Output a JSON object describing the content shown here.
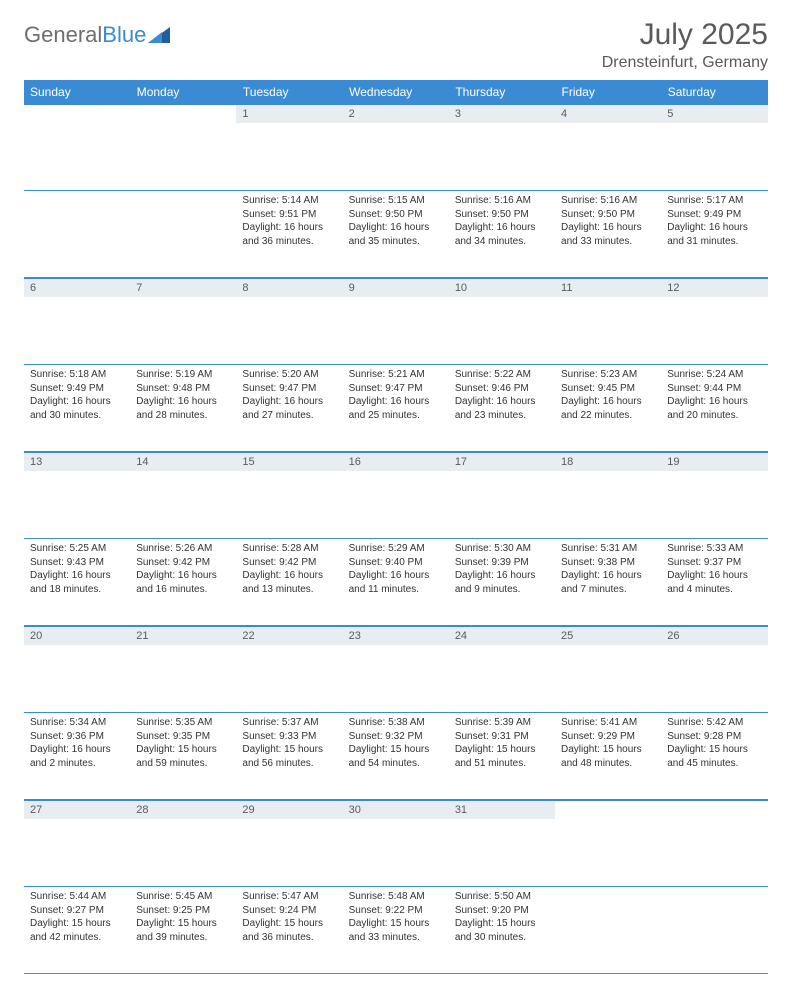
{
  "brand": {
    "part1": "General",
    "part2": "Blue"
  },
  "title": "July 2025",
  "location": "Drensteinfurt, Germany",
  "colors": {
    "header_bg": "#3b8bd4",
    "header_text": "#ffffff",
    "daynum_bg": "#e8edf1",
    "text": "#333333",
    "title_text": "#5a5a5a"
  },
  "columns": [
    "Sunday",
    "Monday",
    "Tuesday",
    "Wednesday",
    "Thursday",
    "Friday",
    "Saturday"
  ],
  "weeks": [
    [
      null,
      null,
      {
        "n": "1",
        "sr": "5:14 AM",
        "ss": "9:51 PM",
        "dl": "16 hours and 36 minutes."
      },
      {
        "n": "2",
        "sr": "5:15 AM",
        "ss": "9:50 PM",
        "dl": "16 hours and 35 minutes."
      },
      {
        "n": "3",
        "sr": "5:16 AM",
        "ss": "9:50 PM",
        "dl": "16 hours and 34 minutes."
      },
      {
        "n": "4",
        "sr": "5:16 AM",
        "ss": "9:50 PM",
        "dl": "16 hours and 33 minutes."
      },
      {
        "n": "5",
        "sr": "5:17 AM",
        "ss": "9:49 PM",
        "dl": "16 hours and 31 minutes."
      }
    ],
    [
      {
        "n": "6",
        "sr": "5:18 AM",
        "ss": "9:49 PM",
        "dl": "16 hours and 30 minutes."
      },
      {
        "n": "7",
        "sr": "5:19 AM",
        "ss": "9:48 PM",
        "dl": "16 hours and 28 minutes."
      },
      {
        "n": "8",
        "sr": "5:20 AM",
        "ss": "9:47 PM",
        "dl": "16 hours and 27 minutes."
      },
      {
        "n": "9",
        "sr": "5:21 AM",
        "ss": "9:47 PM",
        "dl": "16 hours and 25 minutes."
      },
      {
        "n": "10",
        "sr": "5:22 AM",
        "ss": "9:46 PM",
        "dl": "16 hours and 23 minutes."
      },
      {
        "n": "11",
        "sr": "5:23 AM",
        "ss": "9:45 PM",
        "dl": "16 hours and 22 minutes."
      },
      {
        "n": "12",
        "sr": "5:24 AM",
        "ss": "9:44 PM",
        "dl": "16 hours and 20 minutes."
      }
    ],
    [
      {
        "n": "13",
        "sr": "5:25 AM",
        "ss": "9:43 PM",
        "dl": "16 hours and 18 minutes."
      },
      {
        "n": "14",
        "sr": "5:26 AM",
        "ss": "9:42 PM",
        "dl": "16 hours and 16 minutes."
      },
      {
        "n": "15",
        "sr": "5:28 AM",
        "ss": "9:42 PM",
        "dl": "16 hours and 13 minutes."
      },
      {
        "n": "16",
        "sr": "5:29 AM",
        "ss": "9:40 PM",
        "dl": "16 hours and 11 minutes."
      },
      {
        "n": "17",
        "sr": "5:30 AM",
        "ss": "9:39 PM",
        "dl": "16 hours and 9 minutes."
      },
      {
        "n": "18",
        "sr": "5:31 AM",
        "ss": "9:38 PM",
        "dl": "16 hours and 7 minutes."
      },
      {
        "n": "19",
        "sr": "5:33 AM",
        "ss": "9:37 PM",
        "dl": "16 hours and 4 minutes."
      }
    ],
    [
      {
        "n": "20",
        "sr": "5:34 AM",
        "ss": "9:36 PM",
        "dl": "16 hours and 2 minutes."
      },
      {
        "n": "21",
        "sr": "5:35 AM",
        "ss": "9:35 PM",
        "dl": "15 hours and 59 minutes."
      },
      {
        "n": "22",
        "sr": "5:37 AM",
        "ss": "9:33 PM",
        "dl": "15 hours and 56 minutes."
      },
      {
        "n": "23",
        "sr": "5:38 AM",
        "ss": "9:32 PM",
        "dl": "15 hours and 54 minutes."
      },
      {
        "n": "24",
        "sr": "5:39 AM",
        "ss": "9:31 PM",
        "dl": "15 hours and 51 minutes."
      },
      {
        "n": "25",
        "sr": "5:41 AM",
        "ss": "9:29 PM",
        "dl": "15 hours and 48 minutes."
      },
      {
        "n": "26",
        "sr": "5:42 AM",
        "ss": "9:28 PM",
        "dl": "15 hours and 45 minutes."
      }
    ],
    [
      {
        "n": "27",
        "sr": "5:44 AM",
        "ss": "9:27 PM",
        "dl": "15 hours and 42 minutes."
      },
      {
        "n": "28",
        "sr": "5:45 AM",
        "ss": "9:25 PM",
        "dl": "15 hours and 39 minutes."
      },
      {
        "n": "29",
        "sr": "5:47 AM",
        "ss": "9:24 PM",
        "dl": "15 hours and 36 minutes."
      },
      {
        "n": "30",
        "sr": "5:48 AM",
        "ss": "9:22 PM",
        "dl": "15 hours and 33 minutes."
      },
      {
        "n": "31",
        "sr": "5:50 AM",
        "ss": "9:20 PM",
        "dl": "15 hours and 30 minutes."
      },
      null,
      null
    ]
  ],
  "labels": {
    "sunrise": "Sunrise:",
    "sunset": "Sunset:",
    "daylight": "Daylight:"
  }
}
